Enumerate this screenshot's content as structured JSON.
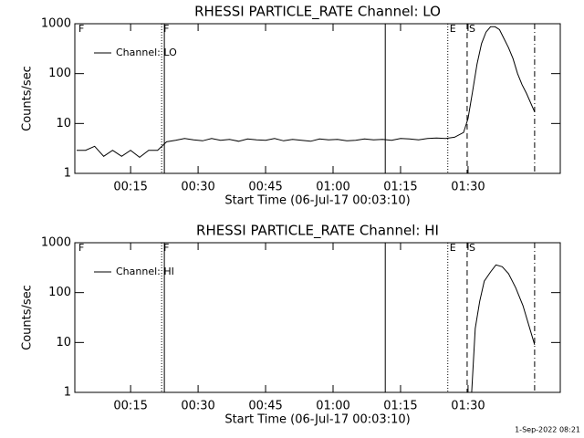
{
  "chart_data": [
    {
      "type": "line",
      "title": "RHESSI PARTICLE_RATE Channel: LO",
      "xlabel": "Start Time (06-Jul-17 00:03:10)",
      "ylabel": "Counts/sec",
      "xlim": [
        2.6,
        110.5
      ],
      "xticks": [
        {
          "value": 15,
          "label": "00:15"
        },
        {
          "value": 30,
          "label": "00:30"
        },
        {
          "value": 45,
          "label": "00:45"
        },
        {
          "value": 60,
          "label": "01:00"
        },
        {
          "value": 75,
          "label": "01:15"
        },
        {
          "value": 90,
          "label": "01:30"
        }
      ],
      "ylim": [
        1,
        1000
      ],
      "yticks": [
        1,
        10,
        100,
        1000
      ],
      "ylog": true,
      "legend": "upper left",
      "markers": [
        {
          "x": 3.0,
          "label": "F",
          "style": "none"
        },
        {
          "x": 21.9,
          "label": "F",
          "style": "dotted"
        },
        {
          "x": 22.5,
          "style": "solid"
        },
        {
          "x": 71.6,
          "style": "solid"
        },
        {
          "x": 85.5,
          "label": "E",
          "style": "dotted"
        },
        {
          "x": 89.8,
          "label": "S",
          "style": "dashed"
        },
        {
          "x": 104.8,
          "style": "dashdot"
        }
      ],
      "series": [
        {
          "name": "Channel: LO",
          "color": "#000000",
          "x": [
            3,
            5,
            7,
            9,
            11,
            13,
            15,
            17,
            19,
            21,
            23,
            25,
            27,
            29,
            31,
            33,
            35,
            37,
            39,
            41,
            43,
            45,
            47,
            49,
            51,
            53,
            55,
            57,
            59,
            61,
            63,
            65,
            67,
            69,
            71,
            73,
            75,
            77,
            79,
            81,
            83,
            85,
            87,
            89,
            90,
            91,
            92,
            93,
            94,
            95,
            96,
            97,
            98,
            99,
            100,
            101,
            102,
            103,
            104.8
          ],
          "values": [
            2.9,
            2.9,
            3.5,
            2.2,
            2.9,
            2.2,
            2.9,
            2.1,
            2.9,
            2.9,
            4.3,
            4.6,
            5.0,
            4.7,
            4.5,
            5.0,
            4.6,
            4.8,
            4.4,
            4.9,
            4.7,
            4.6,
            5.0,
            4.5,
            4.8,
            4.6,
            4.4,
            4.9,
            4.7,
            4.8,
            4.5,
            4.6,
            4.9,
            4.7,
            4.8,
            4.6,
            5.0,
            4.9,
            4.7,
            5.0,
            5.1,
            5.0,
            5.3,
            6.6,
            12.5,
            44,
            156,
            400,
            680,
            870,
            870,
            760,
            500,
            330,
            200,
            100,
            60,
            40,
            17
          ]
        }
      ]
    },
    {
      "type": "line",
      "title": "RHESSI PARTICLE_RATE Channel: HI",
      "xlabel": "Start Time (06-Jul-17 00:03:10)",
      "ylabel": "Counts/sec",
      "xlim": [
        2.6,
        110.5
      ],
      "xticks": [
        {
          "value": 15,
          "label": "00:15"
        },
        {
          "value": 30,
          "label": "00:30"
        },
        {
          "value": 45,
          "label": "00:45"
        },
        {
          "value": 60,
          "label": "01:00"
        },
        {
          "value": 75,
          "label": "01:15"
        },
        {
          "value": 90,
          "label": "01:30"
        }
      ],
      "ylim": [
        1,
        1000
      ],
      "yticks": [
        1,
        10,
        100,
        1000
      ],
      "ylog": true,
      "legend": "upper left",
      "markers": [
        {
          "x": 3.0,
          "label": "F",
          "style": "none"
        },
        {
          "x": 21.9,
          "label": "F",
          "style": "dotted"
        },
        {
          "x": 22.5,
          "style": "solid"
        },
        {
          "x": 71.6,
          "style": "solid"
        },
        {
          "x": 85.5,
          "label": "E",
          "style": "dotted"
        },
        {
          "x": 89.8,
          "label": "S",
          "style": "dashed"
        },
        {
          "x": 104.8,
          "style": "dashdot"
        }
      ],
      "series": [
        {
          "name": "Channel: HI",
          "color": "#000000",
          "x": [
            90.8,
            91.6,
            92.6,
            93.6,
            95,
            96.2,
            97.6,
            99,
            100.6,
            102.2,
            104.8
          ],
          "values": [
            1,
            19,
            67,
            170,
            260,
            360,
            330,
            240,
            125,
            55,
            9
          ]
        }
      ]
    }
  ],
  "footer": "1-Sep-2022 08:21"
}
